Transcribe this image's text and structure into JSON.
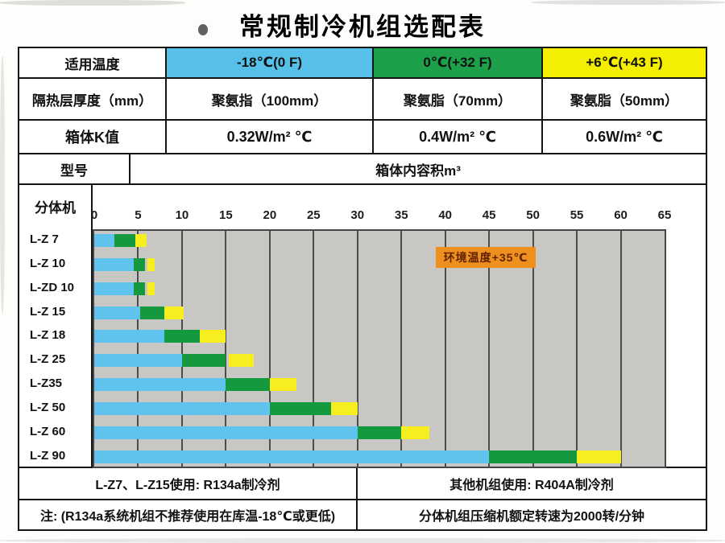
{
  "title": "常规制冷机组选配表",
  "colors": {
    "header_blue": "#56c0e8",
    "header_green": "#1da04a",
    "header_yellow": "#f4ee00",
    "plot_bg": "#c9c7c4",
    "grid_line": "#4d4d4d",
    "border": "#151515"
  },
  "spec": {
    "rows": [
      {
        "label": "适用温度",
        "cells": [
          "-18℃(0 F)",
          "0℃(+32 F)",
          "+6℃(+43 F)"
        ]
      },
      {
        "label": "隔热层厚度（mm）",
        "cells": [
          "聚氨指（100mm）",
          "聚氨脂（70mm）",
          "聚氨脂（50mm）"
        ]
      },
      {
        "label": "箱体K值",
        "cells": [
          "0.32W/m² ℃",
          "0.4W/m² ℃",
          "0.6W/m² ℃"
        ]
      }
    ],
    "model_header": "型号",
    "volume_header": "箱体内容积m³"
  },
  "chart_data": {
    "type": "bar",
    "orientation": "horizontal-stacked",
    "side_header": "分体机",
    "xlabel": "箱体内容积m³",
    "xlim": [
      0,
      65
    ],
    "x_ticks": [
      0,
      5,
      10,
      15,
      20,
      25,
      30,
      35,
      40,
      45,
      50,
      55,
      60,
      65
    ],
    "grid": true,
    "series_colors": {
      "blue": "#5fc3ee",
      "green": "#14993e",
      "yellow": "#f6ee1e"
    },
    "annotation": {
      "text": "环境温度+35℃",
      "bg": "#ef8f1e",
      "fg": "#5f2300"
    },
    "rows": [
      {
        "model": "L-Z 7",
        "segments": {
          "blue": [
            0,
            2.3
          ],
          "green": [
            2.3,
            4.7
          ],
          "yellow": [
            4.7,
            6.0
          ]
        }
      },
      {
        "model": "L-Z 10",
        "segments": {
          "blue": [
            0,
            4.5
          ],
          "green": [
            4.5,
            5.8
          ],
          "yellow": [
            6.1,
            6.9
          ]
        }
      },
      {
        "model": "L-ZD 10",
        "segments": {
          "blue": [
            0,
            4.5
          ],
          "green": [
            4.5,
            5.8
          ],
          "yellow": [
            6.1,
            6.9
          ]
        }
      },
      {
        "model": "L-Z 15",
        "segments": {
          "blue": [
            0,
            5.2
          ],
          "green": [
            5.2,
            8.0
          ],
          "yellow": [
            8.0,
            10.2
          ]
        }
      },
      {
        "model": "L-Z 18",
        "segments": {
          "blue": [
            0,
            8.0
          ],
          "green": [
            8.0,
            12.0
          ],
          "yellow": [
            12.0,
            15.0
          ]
        }
      },
      {
        "model": "L-Z 25",
        "segments": {
          "blue": [
            0,
            10.0
          ],
          "green": [
            10.0,
            15.0
          ],
          "yellow": [
            15.3,
            18.2
          ]
        }
      },
      {
        "model": "L-Z35",
        "segments": {
          "blue": [
            0,
            15.0
          ],
          "green": [
            15.0,
            20.0
          ],
          "yellow": [
            20.0,
            23.0
          ]
        }
      },
      {
        "model": "L-Z 50",
        "segments": {
          "blue": [
            0,
            20.0
          ],
          "green": [
            20.0,
            27.0
          ],
          "yellow": [
            27.0,
            30.0
          ]
        }
      },
      {
        "model": "L-Z 60",
        "segments": {
          "blue": [
            0,
            30.0
          ],
          "green": [
            30.0,
            35.0
          ],
          "yellow": [
            35.0,
            38.2
          ]
        }
      },
      {
        "model": "L-Z 90",
        "segments": {
          "blue": [
            0,
            45.0
          ],
          "green": [
            45.0,
            55.0
          ],
          "yellow": [
            55.0,
            60.0
          ]
        }
      }
    ]
  },
  "footer": {
    "rows": [
      {
        "left": "L-Z7、L-Z15使用: R134a制冷剂",
        "right": "其他机组使用: R404A制冷剂"
      },
      {
        "left": "注: (R134a系统机组不推荐使用在库温-18℃或更低)",
        "right": "分体机组压缩机额定转速为2000转/分钟"
      }
    ]
  }
}
